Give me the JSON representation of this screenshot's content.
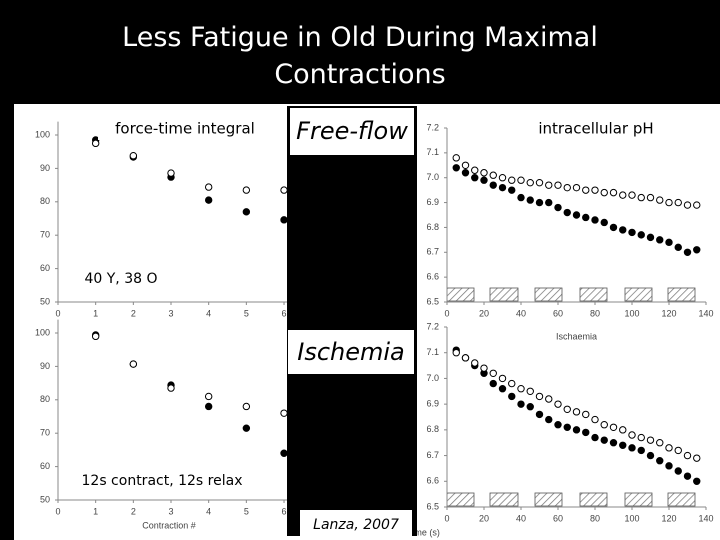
{
  "title": "Less Fatigue in Old During Maximal Contractions",
  "annotations": {
    "force": "force-time integral",
    "free_flow": "Free-flow",
    "ph": "intracellular pH",
    "subjects": "40 Y, 38 O",
    "ischemia": "Ischemia",
    "protocol": "12s contract, 12s relax",
    "citation": "Lanza, 2007"
  },
  "chart_data": [
    {
      "type": "scatter",
      "xlim": [
        0,
        6.5
      ],
      "xticks": [
        0,
        1,
        2,
        3,
        4,
        5,
        6
      ],
      "ylim": [
        50,
        104
      ],
      "yticks": [
        50,
        60,
        70,
        80,
        90,
        100
      ],
      "x": [
        1,
        2,
        3,
        4,
        5,
        6
      ],
      "series": [
        {
          "color": "#000000",
          "marker": "filled",
          "values": [
            98.5,
            93.4,
            87.4,
            80.5,
            77,
            74.6
          ]
        },
        {
          "color": "#000000",
          "marker": "open",
          "values": [
            97.5,
            93.8,
            88.6,
            84.4,
            83.5,
            83.5
          ]
        }
      ]
    },
    {
      "type": "scatter",
      "xlim": [
        0,
        6.5
      ],
      "xticks": [
        0,
        1,
        2,
        3,
        4,
        5,
        6
      ],
      "ylim": [
        50,
        104
      ],
      "yticks": [
        50,
        60,
        70,
        80,
        90,
        100
      ],
      "x_label": "Contraction #",
      "x": [
        1,
        2,
        3,
        4,
        5,
        6
      ],
      "series": [
        {
          "color": "#000000",
          "marker": "filled",
          "values": [
            99.4,
            90.7,
            84.4,
            78,
            71.5,
            64
          ]
        },
        {
          "color": "#000000",
          "marker": "open",
          "values": [
            99,
            90.7,
            83.5,
            81,
            78,
            76
          ]
        }
      ]
    },
    {
      "type": "scatter",
      "xlim": [
        0,
        140
      ],
      "xticks": [
        0,
        20,
        40,
        60,
        80,
        100,
        120,
        140
      ],
      "ylim": [
        6.5,
        7.2
      ],
      "yticks": [
        6.5,
        6.6,
        6.7,
        6.8,
        6.9,
        {
          "value": 7,
          "label": "7.0"
        },
        7.1,
        7.2
      ],
      "x": [
        5,
        10,
        15,
        20,
        25,
        30,
        35,
        40,
        45,
        50,
        55,
        60,
        65,
        70,
        75,
        80,
        85,
        90,
        95,
        100,
        105,
        110,
        115,
        120,
        125,
        130,
        135
      ],
      "series": [
        {
          "color": "#000000",
          "marker": "filled",
          "values": [
            7.04,
            7.02,
            7.0,
            6.99,
            6.97,
            6.96,
            6.95,
            6.92,
            6.91,
            6.9,
            6.9,
            6.88,
            6.86,
            6.85,
            6.84,
            6.83,
            6.82,
            6.8,
            6.79,
            6.78,
            6.77,
            6.76,
            6.75,
            6.74,
            6.72,
            6.7,
            6.71
          ]
        },
        {
          "color": "#000000",
          "marker": "open",
          "values": [
            7.08,
            7.05,
            7.03,
            7.02,
            7.01,
            7.0,
            6.99,
            6.99,
            6.98,
            6.98,
            6.97,
            6.97,
            6.96,
            6.96,
            6.95,
            6.95,
            6.94,
            6.94,
            6.93,
            6.93,
            6.92,
            6.92,
            6.91,
            6.9,
            6.9,
            6.89,
            6.89
          ]
        }
      ]
    },
    {
      "type": "scatter",
      "title": "Ischaemia",
      "x_label": "Time (s)",
      "xlim": [
        0,
        140
      ],
      "xticks": [
        0,
        20,
        40,
        60,
        80,
        100,
        120,
        140
      ],
      "ylim": [
        6.5,
        7.2
      ],
      "yticks": [
        6.5,
        6.6,
        6.7,
        6.8,
        6.9,
        {
          "value": 7,
          "label": "7.0"
        },
        7.1,
        7.2
      ],
      "x": [
        5,
        10,
        15,
        20,
        25,
        30,
        35,
        40,
        45,
        50,
        55,
        60,
        65,
        70,
        75,
        80,
        85,
        90,
        95,
        100,
        105,
        110,
        115,
        120,
        125,
        130,
        135
      ],
      "series": [
        {
          "color": "#000000",
          "marker": "filled",
          "values": [
            7.11,
            7.08,
            7.05,
            7.02,
            6.98,
            6.96,
            6.93,
            6.9,
            6.89,
            6.86,
            6.84,
            6.82,
            6.81,
            6.8,
            6.79,
            6.77,
            6.76,
            6.75,
            6.74,
            6.73,
            6.72,
            6.7,
            6.68,
            6.66,
            6.64,
            6.62,
            6.6
          ]
        },
        {
          "color": "#000000",
          "marker": "open",
          "values": [
            7.1,
            7.08,
            7.06,
            7.04,
            7.02,
            7.0,
            6.98,
            6.96,
            6.95,
            6.93,
            6.92,
            6.9,
            6.88,
            6.87,
            6.86,
            6.84,
            6.82,
            6.81,
            6.8,
            6.78,
            6.77,
            6.76,
            6.75,
            6.73,
            6.72,
            6.7,
            6.69
          ]
        }
      ]
    }
  ]
}
